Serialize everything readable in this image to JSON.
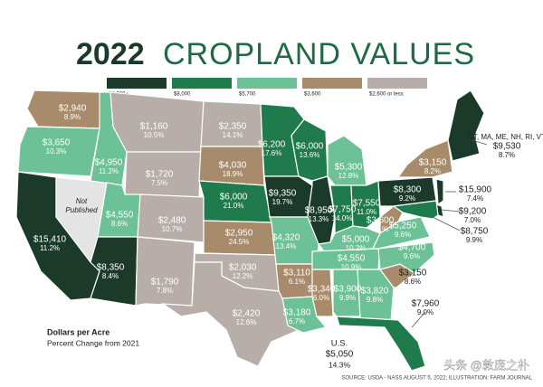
{
  "title_year": "2022",
  "title_rest": "CROPLAND VALUES",
  "legend": [
    {
      "label": "$8,000+",
      "color": "#1c3a2a"
    },
    {
      "label": "$8,000",
      "color": "#1f7a4c"
    },
    {
      "label": "$5,700",
      "color": "#6cc197"
    },
    {
      "label": "$3,600",
      "color": "#a88b6b"
    },
    {
      "label": "$2,600 or less",
      "color": "#b7aea9"
    }
  ],
  "states": [
    {
      "value": "$2,940",
      "change": "8.9%",
      "color": "#a88b6b"
    },
    {
      "value": "$3,650",
      "change": "10.3%",
      "color": "#6cc197"
    },
    {
      "value": "$15,410",
      "change": "11.2%",
      "color": "#1c3a2a"
    },
    {
      "lines": [
        "Not",
        "Published"
      ],
      "color": "#e4e4e4"
    },
    {
      "value": "$4,950",
      "change": "11.2%",
      "color": "#6cc197"
    },
    {
      "value": "$1,160",
      "change": "10.5%",
      "color": "#b7aea9"
    },
    {
      "value": "$1,720",
      "change": "7.5%",
      "color": "#b7aea9"
    },
    {
      "value": "$4,550",
      "change": "8.6%",
      "color": "#6cc197"
    },
    {
      "value": "$8,350",
      "change": "8.4%",
      "color": "#1c3a2a"
    },
    {
      "value": "$2,480",
      "change": "10.7%",
      "color": "#b7aea9"
    },
    {
      "value": "$1,790",
      "change": "7.8%",
      "color": "#b7aea9"
    },
    {
      "value": "$2,350",
      "change": "14.1%",
      "color": "#b7aea9"
    },
    {
      "value": "$4,030",
      "change": "18.9%",
      "color": "#a88b6b"
    },
    {
      "value": "$6,000",
      "change": "21.0%",
      "color": "#1f7a4c"
    },
    {
      "value": "$2,950",
      "change": "24.5%",
      "color": "#a88b6b"
    },
    {
      "value": "$2,030",
      "change": "12.2%",
      "color": "#b7aea9"
    },
    {
      "value": "$2,420",
      "change": "12.6%",
      "color": "#b7aea9"
    },
    {
      "value": "$6,200",
      "change": "17.6%",
      "color": "#1f7a4c"
    },
    {
      "value": "$9,350",
      "change": "19.7%",
      "color": "#1c3a2a"
    },
    {
      "value": "$4,320",
      "change": "13.4%",
      "color": "#6cc197"
    },
    {
      "value": "$3,110",
      "change": "6.1%",
      "color": "#a88b6b"
    },
    {
      "value": "$3,180",
      "change": "6.7%",
      "color": "#6cc197"
    },
    {
      "value": "$6,000",
      "change": "13.6%",
      "color": "#1f7a4c"
    },
    {
      "value": "$8,950",
      "change": "13.3%",
      "color": "#1c3a2a"
    },
    {
      "value": "$3,340",
      "change": "6.0%",
      "color": "#a88b6b"
    },
    {
      "value": "$5,300",
      "change": "12.8%",
      "color": "#6cc197"
    },
    {
      "value": "$7,750",
      "change": "14.0%",
      "color": "#1f7a4c"
    },
    {
      "value": "$7,550",
      "change": "11.0%",
      "color": "#1f7a4c"
    },
    {
      "value": "$5,000",
      "change": "10.2%",
      "color": "#6cc197"
    },
    {
      "value": "$4,550",
      "change": "10.9%",
      "color": "#6cc197"
    },
    {
      "value": "$3,900",
      "change": "9.9%",
      "color": "#6cc197"
    },
    {
      "value": "$3,820",
      "change": "9.8%",
      "color": "#6cc197"
    },
    {
      "value": "$7,960",
      "change": "9.0%",
      "color": "#1f7a4c"
    },
    {
      "value": "$3,150",
      "change": "8.6%",
      "color": "#a88b6b"
    },
    {
      "value": "$4,700",
      "change": "9.6%",
      "color": "#6cc197"
    },
    {
      "value": "$5,250",
      "change": "9.6%",
      "color": "#6cc197"
    },
    {
      "value": "$3,600",
      "change": "8.1%",
      "color": "#a88b6b"
    },
    {
      "value": "$8,300",
      "change": "9.2%",
      "color": "#1c3a2a"
    },
    {
      "value": "$3,150",
      "change": "8.2%",
      "color": "#a88b6b"
    },
    {
      "value": "$15,900",
      "change": "7.4%",
      "color": "#1c3a2a"
    },
    {
      "value": "$9,200",
      "change": "7.0%",
      "color": "#1c3a2a"
    },
    {
      "value": "$8,750",
      "change": "9.9%",
      "color": "#1f7a4c"
    },
    {
      "name": "CT, MA, ME, NH, RI, VT",
      "value": "$9,530",
      "change": "8.7%",
      "color": "#1c3a2a"
    }
  ],
  "key_title": "Dollars per Acre",
  "key_subtitle": "Percent Change from 2021",
  "us_label": "U.S.",
  "us_value": "$5,050",
  "us_change": "14.3%",
  "source": "SOURCE: USDA - NASS AUGUST 5, 2022; ILLUSTRATION: FARM JOURNAL",
  "watermark": "头条 @敦庞之朴"
}
